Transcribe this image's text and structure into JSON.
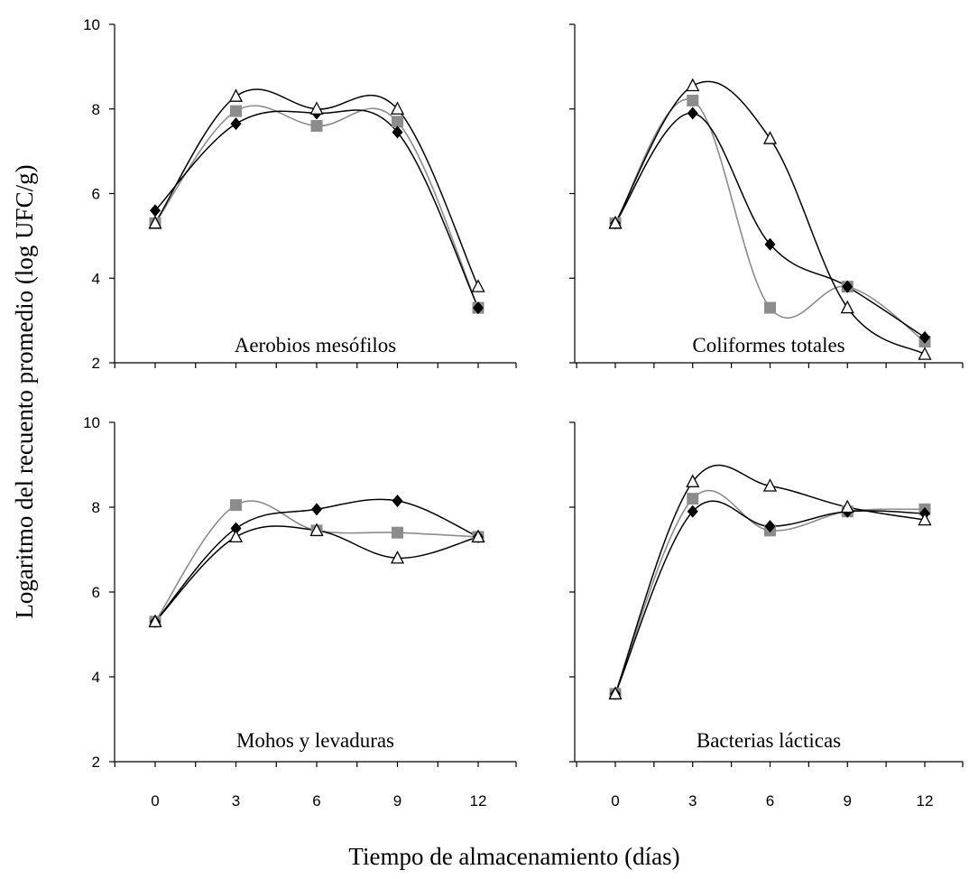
{
  "figure": {
    "ylabel": "Logaritmo del recuento promedio (log UFC/g)",
    "xlabel": "Tiempo de almacenamiento (días)"
  },
  "colors": {
    "diamond_series": "#000000",
    "square_series": "#8c8c8c",
    "triangle_series": "#000000"
  },
  "chart_data": [
    {
      "type": "line",
      "title": "Aerobios mesófilos",
      "x": [
        0,
        3,
        6,
        9,
        12
      ],
      "xticks": [
        "0",
        "3",
        "6",
        "9",
        "12"
      ],
      "ylim": [
        2,
        10
      ],
      "yticks": [
        "2",
        "4",
        "6",
        "8",
        "10"
      ],
      "grid": false,
      "series": [
        {
          "marker": "diamond",
          "color": "#000000",
          "values": [
            5.6,
            7.65,
            7.9,
            7.45,
            3.3
          ]
        },
        {
          "marker": "square",
          "color": "#8c8c8c",
          "values": [
            5.3,
            7.95,
            7.6,
            7.7,
            3.3
          ]
        },
        {
          "marker": "triangle",
          "color": "#000000",
          "values": [
            5.3,
            8.3,
            8.0,
            8.0,
            3.8
          ]
        }
      ]
    },
    {
      "type": "line",
      "title": "Coliformes totales",
      "x": [
        0,
        3,
        6,
        9,
        12
      ],
      "xticks": [
        "0",
        "3",
        "6",
        "9",
        "12"
      ],
      "ylim": [
        2,
        10
      ],
      "yticks": [
        "2",
        "4",
        "6",
        "8",
        "10"
      ],
      "grid": false,
      "series": [
        {
          "marker": "diamond",
          "color": "#000000",
          "values": [
            5.3,
            7.9,
            4.8,
            3.8,
            2.6
          ]
        },
        {
          "marker": "square",
          "color": "#8c8c8c",
          "values": [
            5.3,
            8.2,
            3.3,
            3.8,
            2.5
          ]
        },
        {
          "marker": "triangle",
          "color": "#000000",
          "values": [
            5.3,
            8.55,
            7.3,
            3.3,
            2.2
          ]
        }
      ]
    },
    {
      "type": "line",
      "title": "Mohos y levaduras",
      "x": [
        0,
        3,
        6,
        9,
        12
      ],
      "xticks": [
        "0",
        "3",
        "6",
        "9",
        "12"
      ],
      "ylim": [
        2,
        10
      ],
      "yticks": [
        "2",
        "4",
        "6",
        "8",
        "10"
      ],
      "grid": false,
      "series": [
        {
          "marker": "diamond",
          "color": "#000000",
          "values": [
            5.3,
            7.5,
            7.95,
            8.15,
            7.3
          ]
        },
        {
          "marker": "square",
          "color": "#8c8c8c",
          "values": [
            5.3,
            8.05,
            7.45,
            7.4,
            7.3
          ]
        },
        {
          "marker": "triangle",
          "color": "#000000",
          "values": [
            5.3,
            7.3,
            7.45,
            6.8,
            7.3
          ]
        }
      ]
    },
    {
      "type": "line",
      "title": "Bacterias lácticas",
      "x": [
        0,
        3,
        6,
        9,
        12
      ],
      "xticks": [
        "0",
        "3",
        "6",
        "9",
        "12"
      ],
      "ylim": [
        2,
        10
      ],
      "yticks": [
        "2",
        "4",
        "6",
        "8",
        "10"
      ],
      "grid": false,
      "series": [
        {
          "marker": "diamond",
          "color": "#000000",
          "values": [
            3.6,
            7.9,
            7.55,
            7.9,
            7.85
          ]
        },
        {
          "marker": "square",
          "color": "#8c8c8c",
          "values": [
            3.6,
            8.2,
            7.45,
            7.9,
            7.95
          ]
        },
        {
          "marker": "triangle",
          "color": "#000000",
          "values": [
            3.6,
            8.6,
            8.5,
            8.0,
            7.7
          ]
        }
      ]
    }
  ]
}
